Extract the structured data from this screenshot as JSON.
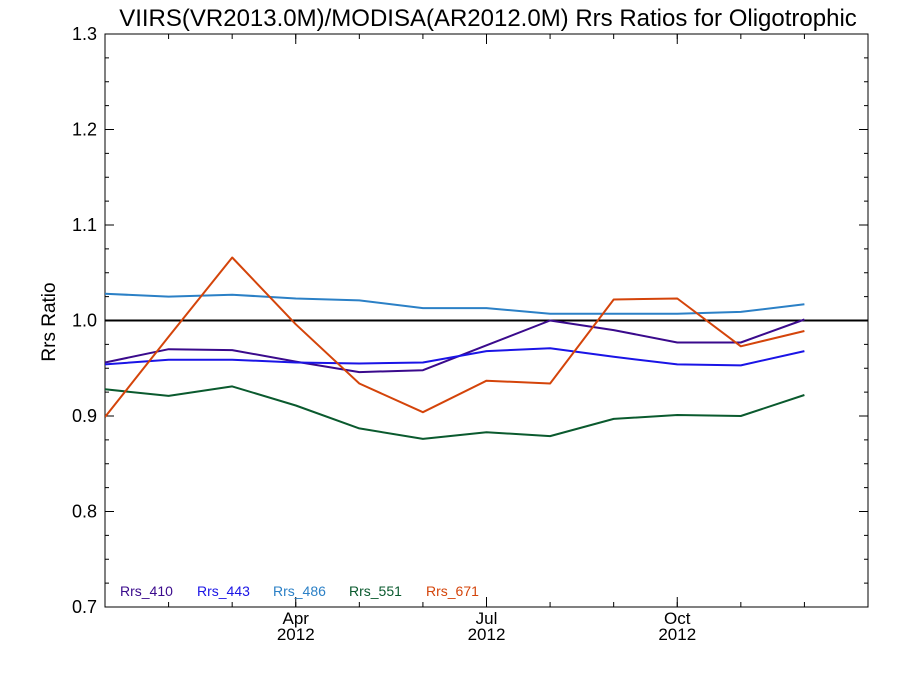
{
  "chart_data": {
    "type": "line",
    "title": "VIIRS(VR2013.0M)/MODISA(AR2012.0M)  Rrs Ratios for Oligotrophic",
    "xlabel": "",
    "ylabel": "Rrs Ratio",
    "ylim": [
      0.7,
      1.3
    ],
    "yticks": [
      "0.7",
      "0.8",
      "0.9",
      "1.0",
      "1.1",
      "1.2",
      "1.3"
    ],
    "xlim": [
      "2012-01",
      "2013-01"
    ],
    "xticks": [
      {
        "month": "Apr",
        "year": "2012"
      },
      {
        "month": "Jul",
        "year": "2012"
      },
      {
        "month": "Oct",
        "year": "2012"
      }
    ],
    "reference_line": 1.0,
    "x": [
      "2012-01",
      "2012-02",
      "2012-03",
      "2012-04",
      "2012-05",
      "2012-06",
      "2012-07",
      "2012-08",
      "2012-09",
      "2012-10",
      "2012-11",
      "2012-12",
      "2013-01"
    ],
    "series": [
      {
        "name": "Rrs_410",
        "color": "#3a0a8c",
        "values": [
          0.956,
          0.97,
          0.969,
          0.957,
          0.946,
          0.948,
          0.974,
          1.0,
          0.99,
          0.977,
          0.977,
          1.001,
          null
        ]
      },
      {
        "name": "Rrs_443",
        "color": "#1a14e6",
        "values": [
          0.954,
          0.959,
          0.959,
          0.956,
          0.955,
          0.956,
          0.968,
          0.971,
          0.962,
          0.954,
          0.953,
          0.968,
          null
        ]
      },
      {
        "name": "Rrs_486",
        "color": "#2b80c6",
        "values": [
          1.028,
          1.025,
          1.027,
          1.023,
          1.021,
          1.013,
          1.013,
          1.007,
          1.007,
          1.007,
          1.009,
          1.017,
          null
        ]
      },
      {
        "name": "Rrs_551",
        "color": "#0a5a2e",
        "values": [
          0.928,
          0.921,
          0.931,
          0.911,
          0.887,
          0.876,
          0.883,
          0.879,
          0.897,
          0.901,
          0.9,
          0.922,
          null
        ]
      },
      {
        "name": "Rrs_671",
        "color": "#d4440a",
        "values": [
          0.899,
          0.983,
          1.066,
          0.996,
          0.934,
          0.904,
          0.937,
          0.934,
          1.022,
          1.023,
          0.973,
          0.989,
          null
        ]
      }
    ],
    "grid": false,
    "legend_position": "bottom-left"
  }
}
